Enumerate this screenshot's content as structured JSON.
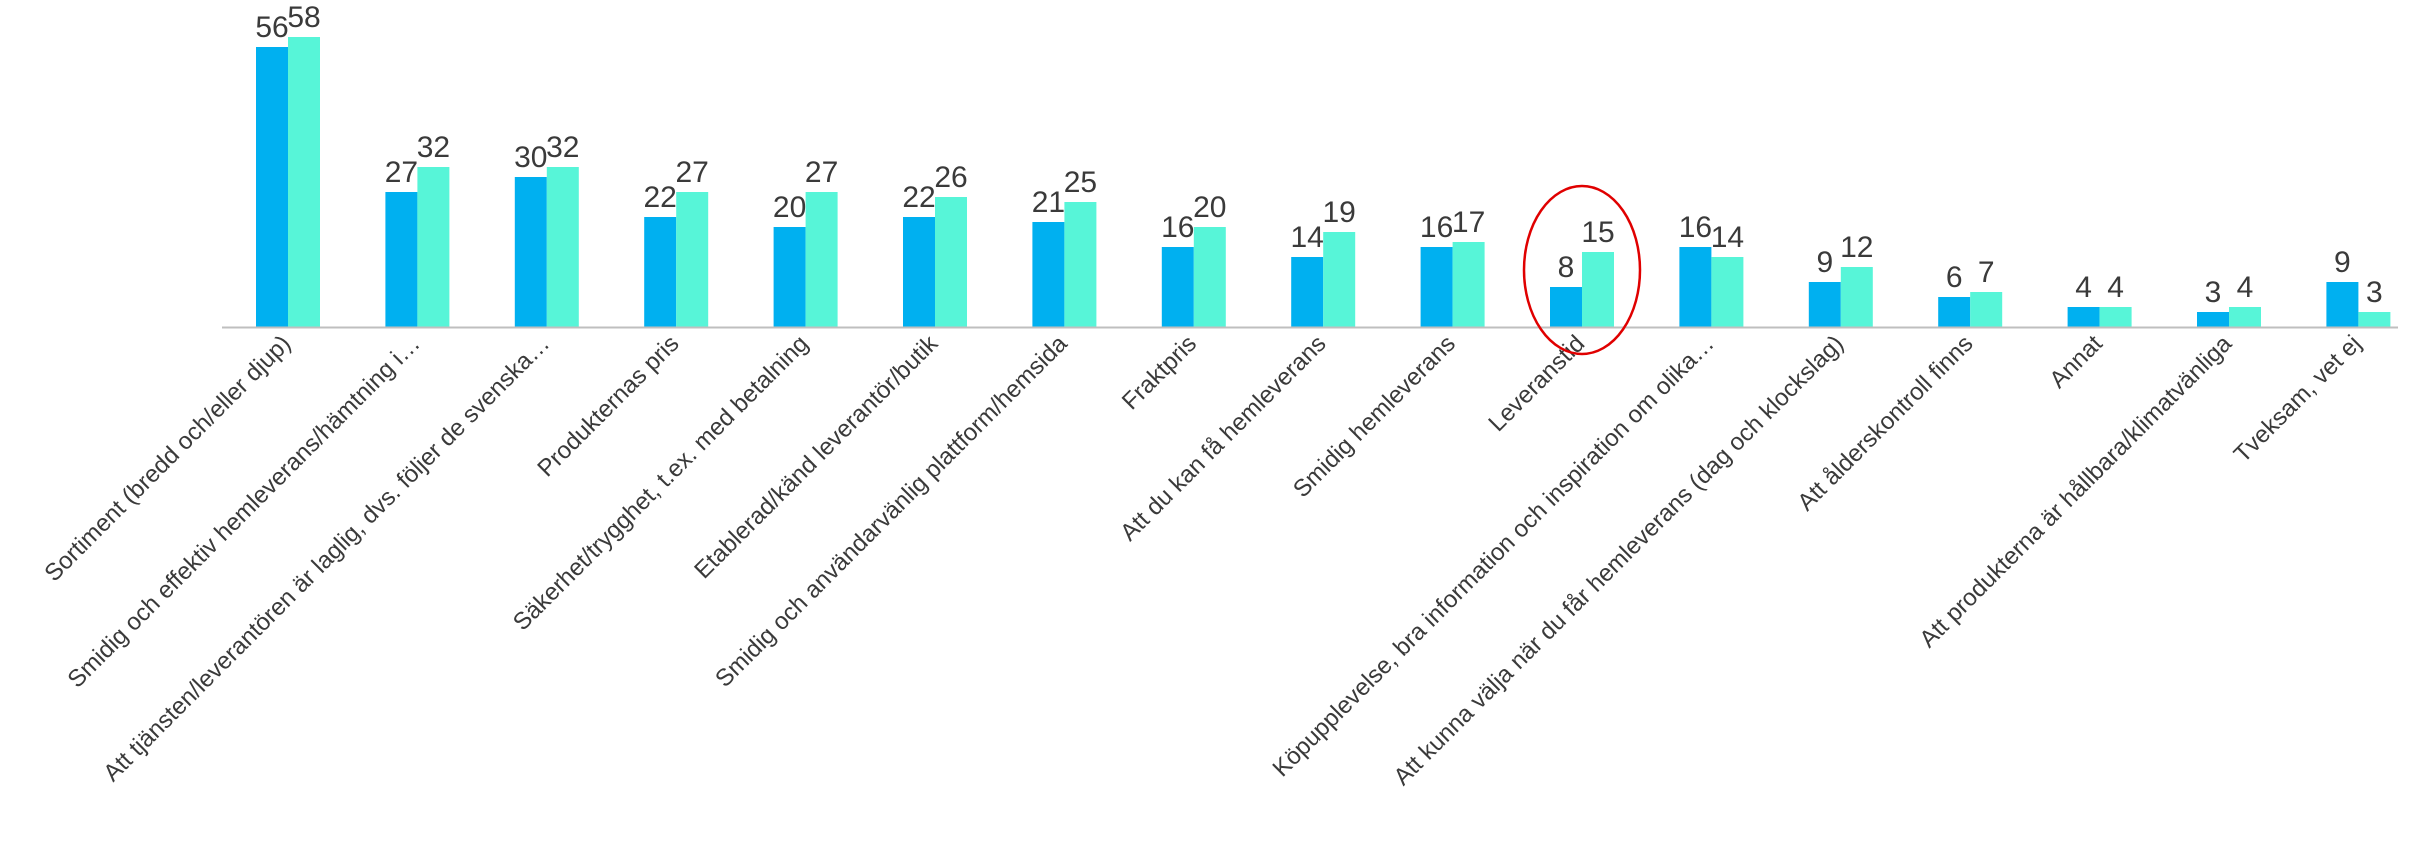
{
  "chart_data": {
    "type": "bar",
    "title": "",
    "xlabel": "",
    "ylabel": "",
    "ylim": [
      0,
      60
    ],
    "grid": false,
    "legend": "none",
    "categories": [
      "Sortiment (bredd och/eller djup)",
      "Smidig och effektiv hemleverans/hämtning i…",
      "Att tjänsten/leverantören är laglig, dvs. följer de svenska…",
      "Produkternas pris",
      "Säkerhet/trygghet, t.ex. med betalning",
      "Etablerad/känd leverantör/butik",
      "Smidig och användarvänlig plattform/hemsida",
      "Fraktpris",
      "Att du kan få hemleverans",
      "Smidig hemleverans",
      "Leveranstid",
      "Köpupplevelse, bra information och inspiration om olika…",
      "Att kunna välja när du får hemleverans (dag och klockslag)",
      "Att ålderskontroll finns",
      "Annat",
      "Att produkterna är hållbara/klimatvänliga",
      "Tveksam, vet ej"
    ],
    "series": [
      {
        "color": "#00b0f0",
        "values": [
          56,
          27,
          30,
          22,
          20,
          22,
          21,
          16,
          14,
          16,
          8,
          16,
          9,
          6,
          4,
          3,
          9
        ]
      },
      {
        "color": "#57f5d8",
        "values": [
          58,
          32,
          32,
          27,
          27,
          26,
          25,
          20,
          19,
          17,
          15,
          14,
          12,
          7,
          4,
          4,
          3
        ]
      }
    ],
    "highlight": {
      "category": "Leveranstid",
      "shape": "ellipse",
      "color": "#e00000"
    },
    "axis_color": "#bfbfbf"
  }
}
